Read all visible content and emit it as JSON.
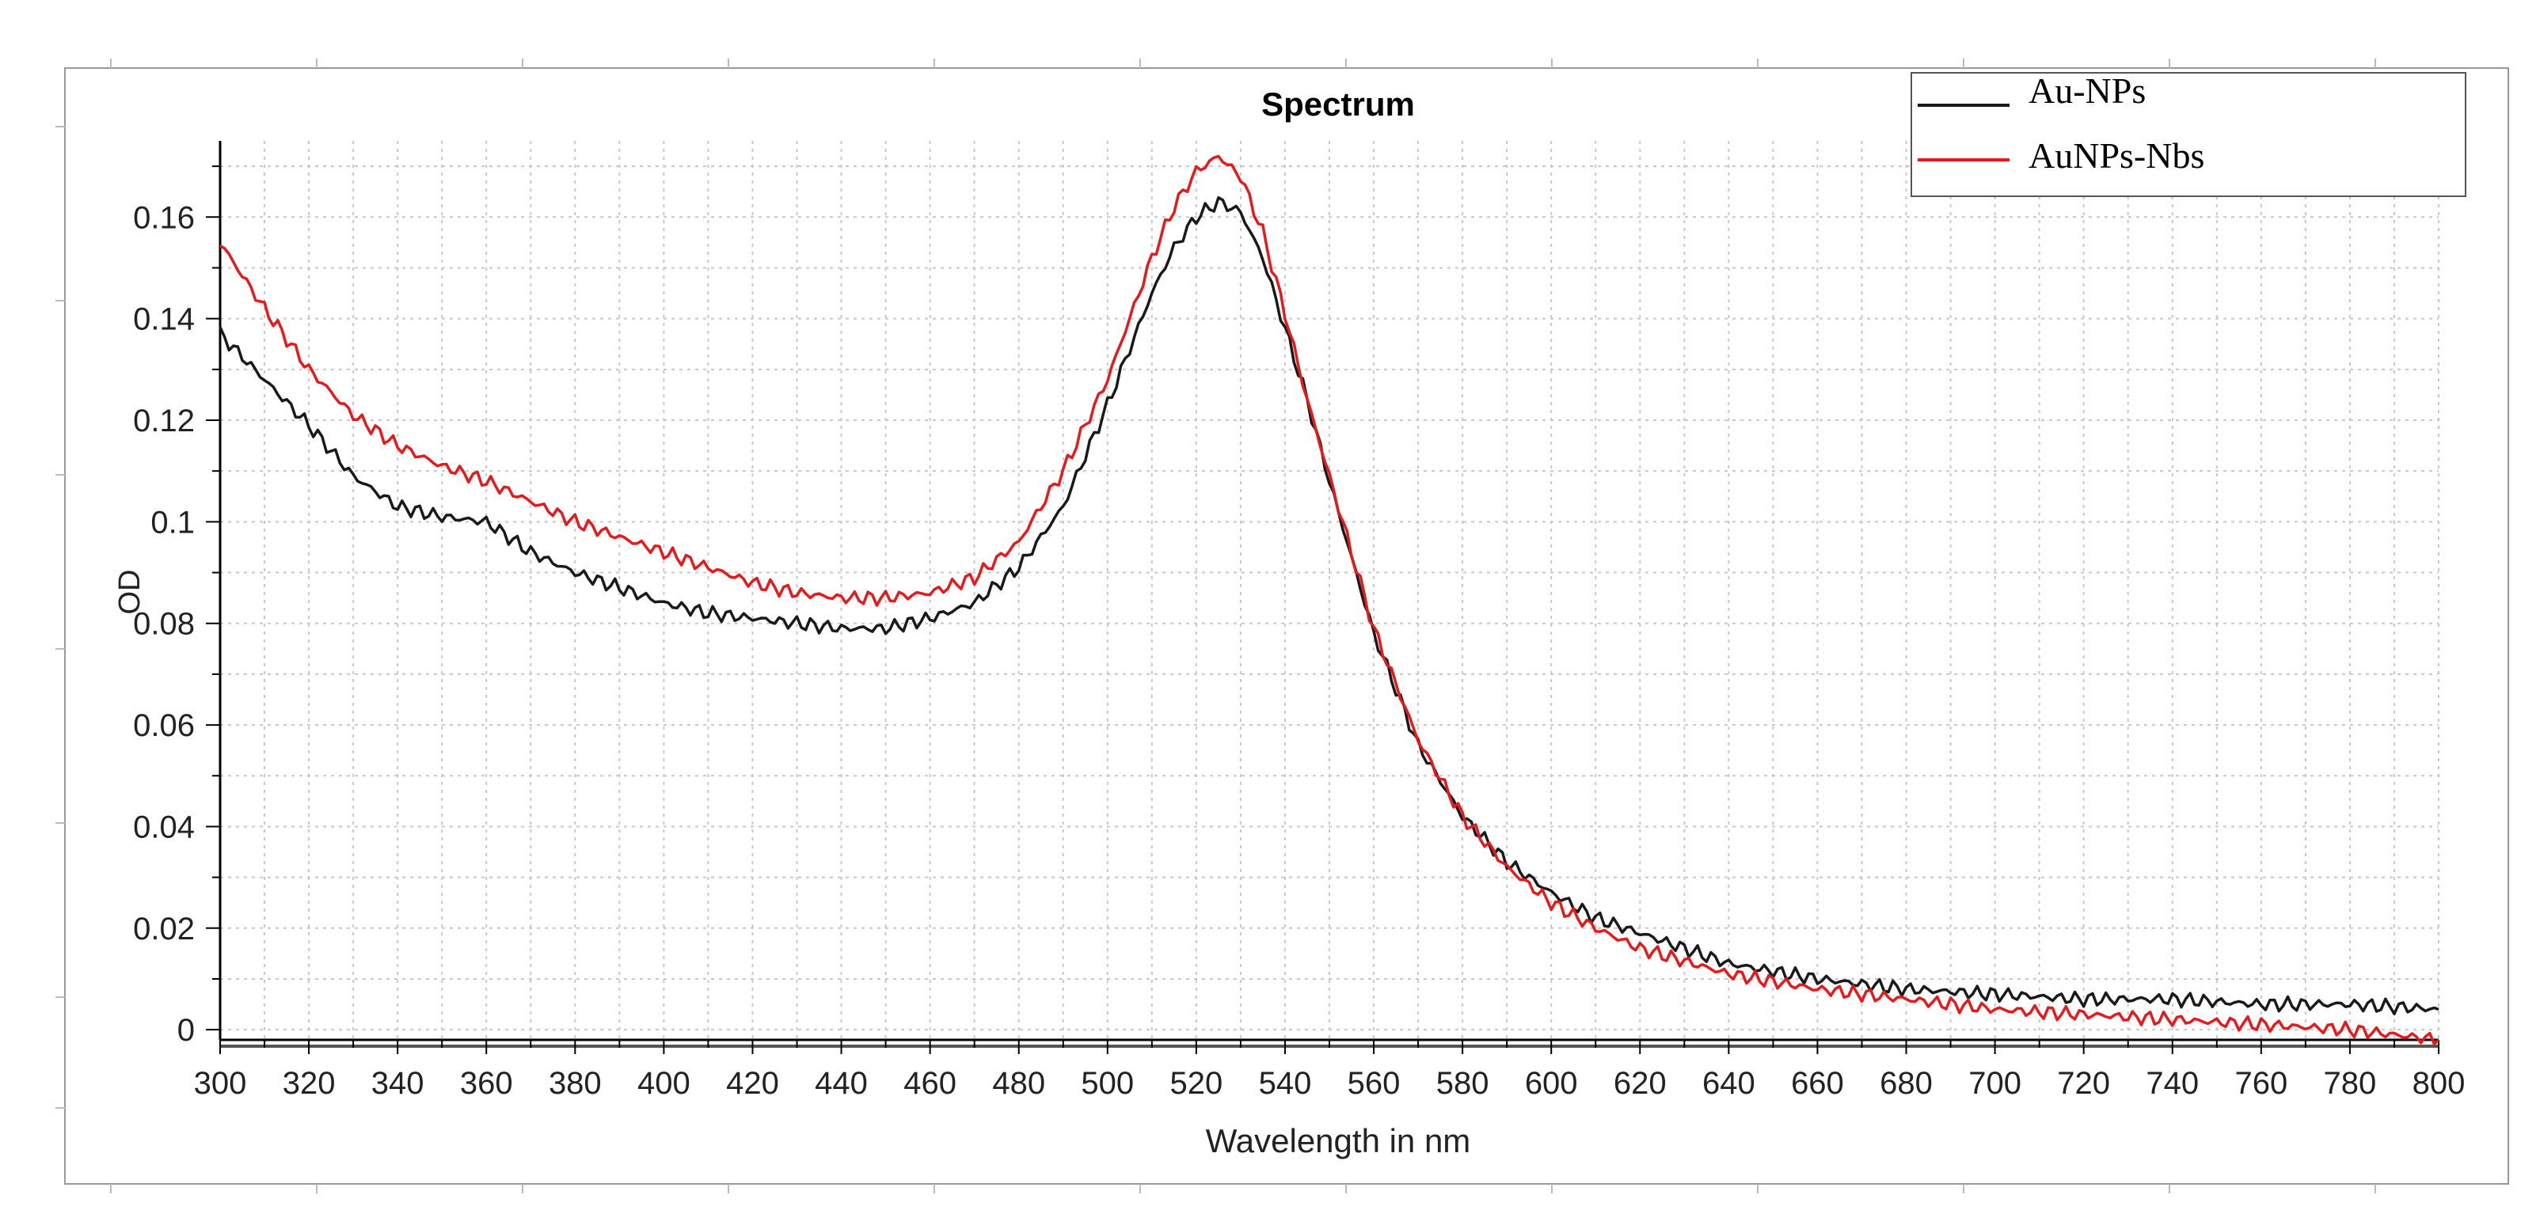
{
  "chart_data": {
    "type": "line",
    "title": "Spectrum",
    "xlabel": "Wavelength in nm",
    "ylabel": "OD",
    "xlim": [
      300,
      800
    ],
    "ylim": [
      -0.002,
      0.175
    ],
    "grid": true,
    "legend_position": "top-right",
    "x_ticks": [
      300,
      320,
      340,
      360,
      380,
      400,
      420,
      440,
      460,
      480,
      500,
      520,
      540,
      560,
      580,
      600,
      620,
      640,
      660,
      680,
      700,
      720,
      740,
      760,
      780,
      800
    ],
    "y_ticks": [
      0,
      0.02,
      0.04,
      0.06,
      0.08,
      0.1,
      0.12,
      0.14,
      0.16
    ],
    "y_tick_labels": [
      "0",
      "0.02",
      "0.04",
      "0.06",
      "0.08",
      "0.1",
      "0.12",
      "0.14",
      "0.16"
    ],
    "series": [
      {
        "name": "Au-NPs",
        "color": "#1a1a1a",
        "x": [
          300,
          310,
          320,
          330,
          340,
          350,
          360,
          370,
          380,
          390,
          400,
          410,
          420,
          430,
          440,
          450,
          460,
          470,
          480,
          490,
          500,
          505,
          510,
          515,
          520,
          525,
          530,
          535,
          540,
          545,
          550,
          560,
          570,
          580,
          590,
          600,
          610,
          620,
          640,
          660,
          680,
          700,
          720,
          740,
          760,
          780,
          800
        ],
        "y": [
          0.137,
          0.128,
          0.119,
          0.109,
          0.103,
          0.101,
          0.1,
          0.094,
          0.09,
          0.087,
          0.084,
          0.082,
          0.081,
          0.08,
          0.079,
          0.079,
          0.081,
          0.084,
          0.091,
          0.103,
          0.123,
          0.134,
          0.145,
          0.154,
          0.16,
          0.163,
          0.161,
          0.152,
          0.138,
          0.124,
          0.108,
          0.078,
          0.056,
          0.042,
          0.033,
          0.027,
          0.022,
          0.019,
          0.013,
          0.01,
          0.008,
          0.007,
          0.006,
          0.006,
          0.005,
          0.005,
          0.004
        ]
      },
      {
        "name": "AuNPs-Nbs",
        "color": "#e41a1c",
        "x": [
          300,
          310,
          320,
          330,
          340,
          350,
          360,
          370,
          380,
          390,
          400,
          410,
          420,
          430,
          440,
          450,
          460,
          470,
          480,
          490,
          500,
          505,
          510,
          515,
          520,
          525,
          530,
          535,
          540,
          545,
          550,
          560,
          570,
          580,
          590,
          600,
          610,
          620,
          640,
          660,
          680,
          700,
          720,
          740,
          760,
          780,
          800
        ],
        "y": [
          0.155,
          0.142,
          0.13,
          0.121,
          0.115,
          0.111,
          0.108,
          0.104,
          0.1,
          0.097,
          0.094,
          0.091,
          0.088,
          0.086,
          0.085,
          0.085,
          0.086,
          0.089,
          0.096,
          0.11,
          0.128,
          0.14,
          0.152,
          0.162,
          0.169,
          0.172,
          0.168,
          0.157,
          0.141,
          0.124,
          0.109,
          0.079,
          0.057,
          0.042,
          0.032,
          0.025,
          0.02,
          0.016,
          0.011,
          0.008,
          0.006,
          0.004,
          0.003,
          0.002,
          0.001,
          0.0,
          -0.002
        ]
      }
    ]
  }
}
